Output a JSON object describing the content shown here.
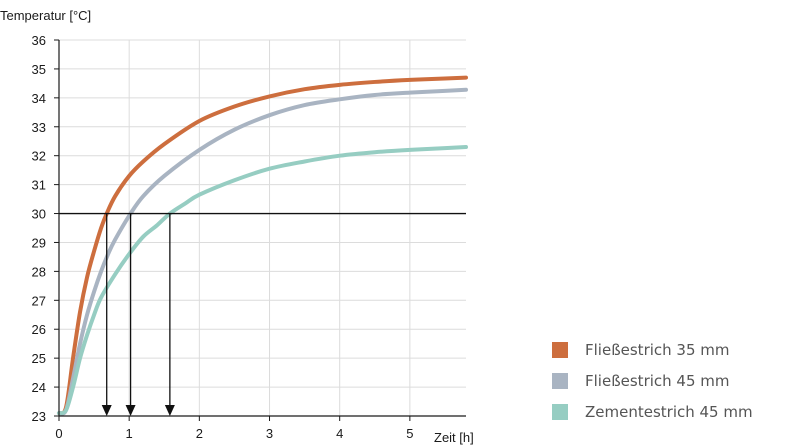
{
  "chart_data": {
    "type": "line",
    "ylabel": "Temperatur [°C]",
    "xlabel": "Zeit [h]",
    "xlim": [
      0,
      5.8
    ],
    "ylim": [
      23,
      36
    ],
    "xticks": [
      0,
      1,
      2,
      3,
      4,
      5
    ],
    "yticks": [
      23,
      24,
      25,
      26,
      27,
      28,
      29,
      30,
      31,
      32,
      33,
      34,
      35,
      36
    ],
    "grid": true,
    "legend_position": "bottom-right",
    "threshold": {
      "y": 30
    },
    "markers": [
      {
        "series": "Fließestrich 35 mm",
        "x": 0.68,
        "y": 30
      },
      {
        "series": "Fließestrich 45 mm",
        "x": 1.02,
        "y": 30
      },
      {
        "series": "Zementestrich 45 mm",
        "x": 1.58,
        "y": 30
      }
    ],
    "series": [
      {
        "name": "Fließestrich 35 mm",
        "color": "#cd6e3e",
        "x": [
          0,
          0.1,
          0.2,
          0.3,
          0.4,
          0.5,
          0.6,
          0.68,
          0.8,
          1.0,
          1.2,
          1.5,
          2.0,
          2.5,
          3.0,
          3.5,
          4.0,
          4.5,
          5.0,
          5.5,
          5.8
        ],
        "y": [
          23.1,
          23.3,
          25.0,
          26.6,
          27.8,
          28.7,
          29.5,
          30.0,
          30.6,
          31.3,
          31.8,
          32.4,
          33.2,
          33.7,
          34.05,
          34.3,
          34.45,
          34.55,
          34.62,
          34.67,
          34.7
        ]
      },
      {
        "name": "Fließestrich 45 mm",
        "color": "#a9b4c2",
        "x": [
          0,
          0.1,
          0.2,
          0.3,
          0.4,
          0.5,
          0.6,
          0.7,
          0.8,
          1.02,
          1.2,
          1.5,
          2.0,
          2.5,
          3.0,
          3.5,
          4.0,
          4.5,
          5.0,
          5.5,
          5.8
        ],
        "y": [
          23.1,
          23.2,
          24.3,
          25.5,
          26.5,
          27.3,
          28.0,
          28.6,
          29.1,
          30.0,
          30.6,
          31.3,
          32.2,
          32.9,
          33.4,
          33.75,
          33.95,
          34.1,
          34.18,
          34.24,
          34.28
        ]
      },
      {
        "name": "Zementestrich 45 mm",
        "color": "#96cdc2",
        "x": [
          0,
          0.1,
          0.2,
          0.3,
          0.4,
          0.5,
          0.6,
          0.8,
          1.0,
          1.2,
          1.4,
          1.58,
          1.8,
          2.0,
          2.5,
          3.0,
          3.5,
          4.0,
          4.5,
          5.0,
          5.5,
          5.8
        ],
        "y": [
          23.1,
          23.2,
          24.0,
          25.0,
          25.8,
          26.5,
          27.1,
          27.9,
          28.6,
          29.2,
          29.6,
          30.0,
          30.35,
          30.65,
          31.15,
          31.55,
          31.8,
          32.0,
          32.12,
          32.2,
          32.26,
          32.3
        ]
      }
    ]
  }
}
